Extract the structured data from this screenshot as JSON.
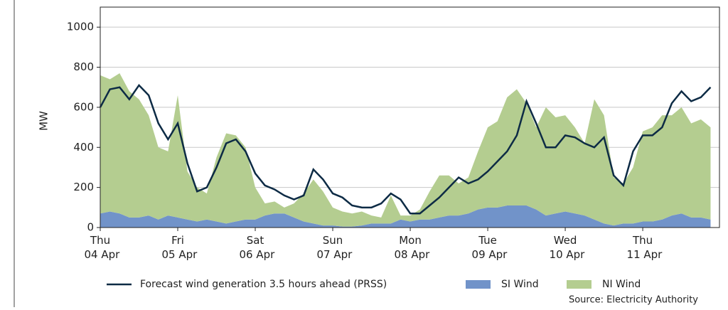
{
  "chart_data": {
    "type": "area",
    "ylabel": "MW",
    "source": "Source: Electricity Authority",
    "categories": [
      "Thu 04 Apr",
      null,
      null,
      null,
      null,
      null,
      null,
      null,
      "Fri 05 Apr",
      null,
      null,
      null,
      null,
      null,
      null,
      null,
      "Sat 06 Apr",
      null,
      null,
      null,
      null,
      null,
      null,
      null,
      "Sun 07 Apr",
      null,
      null,
      null,
      null,
      null,
      null,
      null,
      "Mon 08 Apr",
      null,
      null,
      null,
      null,
      null,
      null,
      null,
      "Tue 09 Apr",
      null,
      null,
      null,
      null,
      null,
      null,
      null,
      "Wed 10 Apr",
      null,
      null,
      null,
      null,
      null,
      null,
      null,
      "Thu 11 Apr",
      null,
      null,
      null,
      null,
      null,
      null,
      null
    ],
    "series": [
      {
        "name": "Forecast wind generation 3.5 hours ahead (PRSS)",
        "type": "line",
        "color": "#0d2b45",
        "values": [
          600,
          690,
          700,
          640,
          710,
          660,
          520,
          440,
          520,
          320,
          180,
          200,
          300,
          420,
          440,
          380,
          270,
          210,
          190,
          160,
          140,
          160,
          290,
          240,
          170,
          150,
          110,
          100,
          100,
          120,
          170,
          140,
          70,
          70,
          110,
          150,
          200,
          250,
          220,
          240,
          280,
          330,
          380,
          460,
          630,
          520,
          400,
          400,
          460,
          450,
          420,
          400,
          450,
          260,
          210,
          380,
          460,
          460,
          500,
          620,
          680,
          630,
          650,
          700
        ]
      },
      {
        "name": "SI Wind",
        "type": "area",
        "color": "#7193c9",
        "values": [
          70,
          80,
          70,
          50,
          50,
          60,
          40,
          60,
          50,
          40,
          30,
          40,
          30,
          20,
          30,
          40,
          40,
          60,
          70,
          70,
          50,
          30,
          20,
          10,
          10,
          5,
          5,
          10,
          20,
          20,
          20,
          40,
          30,
          40,
          40,
          50,
          60,
          60,
          70,
          90,
          100,
          100,
          110,
          110,
          110,
          90,
          60,
          70,
          80,
          70,
          60,
          40,
          20,
          10,
          20,
          20,
          30,
          30,
          40,
          60,
          70,
          50,
          50,
          40
        ]
      },
      {
        "name": "NI Wind",
        "type": "area",
        "color": "#b4cd90",
        "values": [
          690,
          660,
          700,
          630,
          590,
          500,
          360,
          320,
          610,
          240,
          170,
          130,
          320,
          450,
          430,
          360,
          160,
          60,
          60,
          30,
          70,
          140,
          220,
          170,
          90,
          75,
          65,
          70,
          40,
          30,
          140,
          20,
          30,
          50,
          140,
          210,
          200,
          160,
          180,
          290,
          400,
          430,
          540,
          580,
          510,
          410,
          540,
          480,
          480,
          430,
          360,
          600,
          540,
          240,
          200,
          280,
          450,
          470,
          520,
          500,
          530,
          470,
          490,
          460
        ]
      }
    ],
    "ylim": [
      0,
      1100
    ],
    "yticks": [
      0,
      200,
      400,
      600,
      800,
      1000
    ],
    "grid": true
  }
}
